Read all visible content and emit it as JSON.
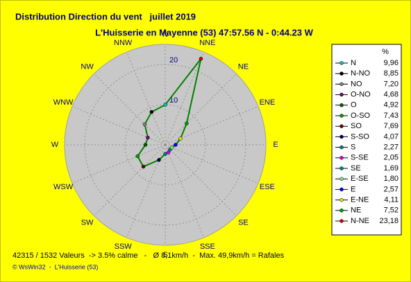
{
  "chart_data": {
    "type": "radar",
    "title": "Distribution Direction du vent   juillet 2019",
    "subtitle": "L'Huisserie en Mayenne (53) 47:57.56 N - 0:44.23 W",
    "axis_labels": [
      "N",
      "NNE",
      "NE",
      "ENE",
      "E",
      "ESE",
      "SE",
      "SSE",
      "S",
      "SSW",
      "SW",
      "WSW",
      "W",
      "WNW",
      "NW",
      "NNW"
    ],
    "legend_header": "%",
    "categories": [
      "N",
      "N-NO",
      "NO",
      "O-NO",
      "O",
      "O-SO",
      "SO",
      "S-SO",
      "S",
      "S-SE",
      "SE",
      "E-SE",
      "E",
      "E-NE",
      "NE",
      "N-NE"
    ],
    "values": [
      9.96,
      8.85,
      7.2,
      4.68,
      4.92,
      7.43,
      7.69,
      4.07,
      2.27,
      2.05,
      1.69,
      1.8,
      2.57,
      4.11,
      7.52,
      23.18
    ],
    "value_labels": [
      "9,96",
      "8,85",
      "7,20",
      "4,68",
      "4,92",
      "7,43",
      "7,69",
      "4,07",
      "2,27",
      "2,05",
      "1,69",
      "1,80",
      "2,57",
      "4,11",
      "7,52",
      "23,18"
    ],
    "colors": [
      "#00c0c0",
      "#000000",
      "#808080",
      "#800080",
      "#006000",
      "#00a000",
      "#800000",
      "#000060",
      "#008080",
      "#e000e0",
      "#008080",
      "#80e080",
      "#0000ff",
      "#e0e000",
      "#00a000",
      "#e00000"
    ],
    "line_color": "#008000",
    "rlim": [
      0,
      25
    ],
    "rticks": [
      10,
      20
    ],
    "footer": "42315 / 1532 Valeurs  -> 3.5% calme   -   Ø 8,1km/h  -  Max. 49,9km/h = Rafales",
    "credit": "© WsWin32  -  L'Huisserie (53)"
  }
}
